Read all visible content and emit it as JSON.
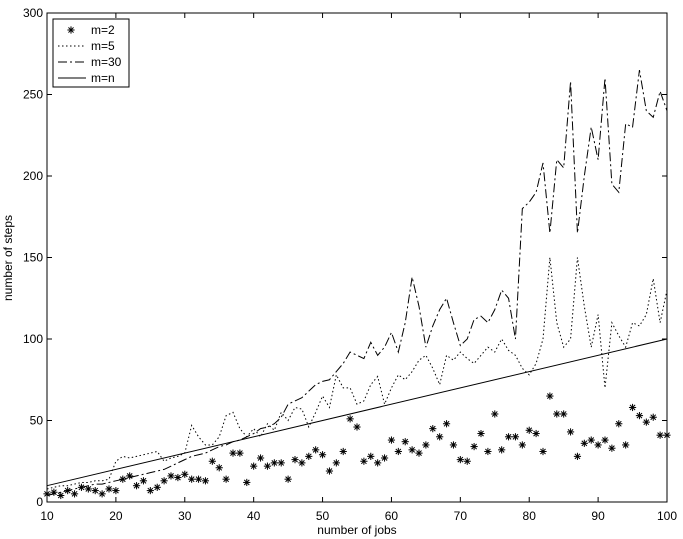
{
  "chart_data": {
    "type": "line",
    "xlabel": "number of jobs",
    "ylabel": "number of steps",
    "xlim": [
      10,
      100
    ],
    "ylim": [
      0,
      300
    ],
    "xticks": [
      10,
      20,
      30,
      40,
      50,
      60,
      70,
      80,
      90,
      100
    ],
    "yticks": [
      0,
      50,
      100,
      150,
      200,
      250,
      300
    ],
    "grid": false,
    "legend_position": "top-left",
    "series": [
      {
        "name": "m=2",
        "style": "star-markers",
        "x": [
          10,
          11,
          12,
          13,
          14,
          15,
          16,
          17,
          18,
          19,
          20,
          21,
          22,
          23,
          24,
          25,
          26,
          27,
          28,
          29,
          30,
          31,
          32,
          33,
          34,
          35,
          36,
          37,
          38,
          39,
          40,
          41,
          42,
          43,
          44,
          45,
          46,
          47,
          48,
          49,
          50,
          51,
          52,
          53,
          54,
          55,
          56,
          57,
          58,
          59,
          60,
          61,
          62,
          63,
          64,
          65,
          66,
          67,
          68,
          69,
          70,
          71,
          72,
          73,
          74,
          75,
          76,
          77,
          78,
          79,
          80,
          81,
          82,
          83,
          84,
          85,
          86,
          87,
          88,
          89,
          90,
          91,
          92,
          93,
          94,
          95,
          96,
          97,
          98,
          99,
          100
        ],
        "y": [
          5,
          6,
          4,
          7,
          5,
          9,
          8,
          7,
          5,
          8,
          7,
          14,
          16,
          10,
          13,
          7,
          9,
          13,
          16,
          15,
          17,
          14,
          14,
          13,
          25,
          21,
          14,
          30,
          30,
          12,
          22,
          27,
          22,
          24,
          24,
          14,
          26,
          24,
          28,
          32,
          29,
          19,
          24,
          31,
          51,
          46,
          25,
          28,
          24,
          27,
          38,
          31,
          37,
          32,
          30,
          35,
          45,
          40,
          48,
          35,
          26,
          25,
          34,
          42,
          31,
          54,
          32,
          40,
          40,
          35,
          44,
          42,
          31,
          65,
          54,
          54,
          43,
          28,
          36,
          38,
          35,
          38,
          33,
          48,
          35,
          58,
          53,
          49,
          52,
          41,
          41
        ]
      },
      {
        "name": "m=5",
        "style": "dotted",
        "x": [
          10,
          11,
          12,
          13,
          14,
          15,
          16,
          17,
          18,
          19,
          20,
          21,
          22,
          23,
          24,
          25,
          26,
          27,
          28,
          29,
          30,
          31,
          32,
          33,
          34,
          35,
          36,
          37,
          38,
          39,
          40,
          41,
          42,
          43,
          44,
          45,
          46,
          47,
          48,
          49,
          50,
          51,
          52,
          53,
          54,
          55,
          56,
          57,
          58,
          59,
          60,
          61,
          62,
          63,
          64,
          65,
          66,
          67,
          68,
          69,
          70,
          71,
          72,
          73,
          74,
          75,
          76,
          77,
          78,
          79,
          80,
          81,
          82,
          83,
          84,
          85,
          86,
          87,
          88,
          89,
          90,
          91,
          92,
          93,
          94,
          95,
          96,
          97,
          98,
          99,
          100
        ],
        "y": [
          8,
          9,
          10,
          10,
          11,
          12,
          12,
          13,
          13,
          14,
          25,
          28,
          27,
          28,
          29,
          30,
          31,
          25,
          27,
          28,
          30,
          47,
          40,
          35,
          35,
          40,
          53,
          55,
          45,
          40,
          45,
          40,
          48,
          44,
          55,
          50,
          58,
          57,
          46,
          55,
          65,
          58,
          78,
          70,
          70,
          60,
          62,
          72,
          77,
          60,
          70,
          78,
          75,
          80,
          87,
          90,
          82,
          72,
          90,
          87,
          92,
          88,
          85,
          90,
          95,
          92,
          100,
          93,
          90,
          82,
          78,
          85,
          100,
          150,
          110,
          95,
          100,
          150,
          120,
          95,
          115,
          70,
          110,
          102,
          95,
          110,
          108,
          115,
          137,
          110,
          130
        ]
      },
      {
        "name": "m=30",
        "style": "dashdot",
        "x": [
          10,
          11,
          12,
          13,
          14,
          15,
          16,
          17,
          18,
          19,
          20,
          21,
          22,
          23,
          24,
          25,
          26,
          27,
          28,
          29,
          30,
          31,
          32,
          33,
          34,
          35,
          36,
          37,
          38,
          39,
          40,
          41,
          42,
          43,
          44,
          45,
          46,
          47,
          48,
          49,
          50,
          51,
          52,
          53,
          54,
          55,
          56,
          57,
          58,
          59,
          60,
          61,
          62,
          63,
          64,
          65,
          66,
          67,
          68,
          69,
          70,
          71,
          72,
          73,
          74,
          75,
          76,
          77,
          78,
          79,
          80,
          81,
          82,
          83,
          84,
          85,
          86,
          87,
          88,
          89,
          90,
          91,
          92,
          93,
          94,
          95,
          96,
          97,
          98,
          99,
          100
        ],
        "y": [
          4,
          5,
          6,
          7,
          8,
          9,
          10,
          11,
          11,
          12,
          13,
          14,
          15,
          16,
          17,
          18,
          19,
          20,
          22,
          24,
          26,
          28,
          29,
          30,
          32,
          34,
          35,
          37,
          38,
          40,
          42,
          45,
          46,
          48,
          52,
          60,
          62,
          64,
          68,
          72,
          74,
          75,
          80,
          85,
          92,
          90,
          88,
          98,
          90,
          95,
          104,
          92,
          110,
          138,
          120,
          95,
          108,
          118,
          125,
          110,
          96,
          100,
          112,
          114,
          110,
          118,
          130,
          125,
          100,
          180,
          184,
          190,
          208,
          165,
          210,
          205,
          258,
          165,
          200,
          230,
          210,
          260,
          195,
          190,
          232,
          230,
          265,
          240,
          236,
          252,
          240
        ]
      },
      {
        "name": "m=n",
        "style": "solid",
        "x": [
          10,
          100
        ],
        "y": [
          10,
          100
        ]
      }
    ]
  }
}
